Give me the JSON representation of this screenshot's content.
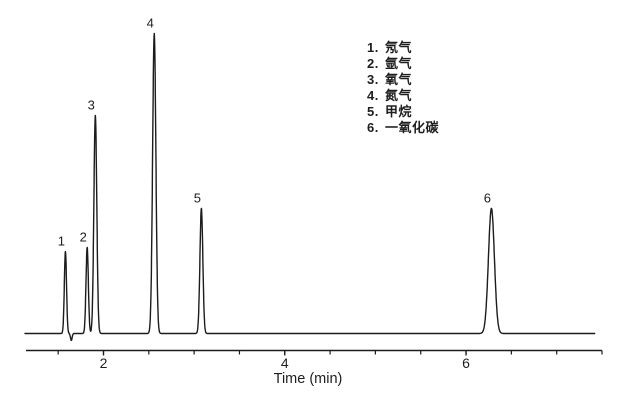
{
  "figure": {
    "background": "#ffffff",
    "trace_color": "#1c1c1c",
    "text_color": "#1e1e1e"
  },
  "chart_data": {
    "type": "line",
    "title": "",
    "xlabel": "Time (min)",
    "ylabel": "",
    "grid": false,
    "legend_position": "upper-right",
    "x_axis": {
      "unit": "min",
      "range": [
        1.145,
        7.5
      ],
      "minor_ticks": [
        1.5,
        2,
        2.5,
        3,
        3.5,
        4,
        4.5,
        5,
        5.5,
        6,
        6.5,
        7,
        7.5
      ],
      "labeled_ticks": [
        {
          "t": 2,
          "label": "2"
        },
        {
          "t": 4,
          "label": "4"
        },
        {
          "t": 6,
          "label": "6"
        }
      ]
    },
    "trace": {
      "t_start": 1.134,
      "t_end": 7.42,
      "baseline_level": 0,
      "negative_dip": {
        "time_min": 1.645,
        "depth_rel": 0.023,
        "sigma_min": 0.009
      }
    },
    "peaks": [
      {
        "label": "1",
        "compound": "氖气",
        "time_min": 1.58,
        "height_rel": 0.273,
        "sigma_min": 0.012
      },
      {
        "label": "2",
        "compound": "氩气",
        "time_min": 1.82,
        "height_rel": 0.287,
        "sigma_min": 0.013
      },
      {
        "label": "3",
        "compound": "氧气",
        "time_min": 1.91,
        "height_rel": 0.727,
        "sigma_min": 0.016
      },
      {
        "label": "4",
        "compound": "氮气",
        "time_min": 2.56,
        "height_rel": 1.0,
        "sigma_min": 0.018
      },
      {
        "label": "5",
        "compound": "甲烷",
        "time_min": 3.08,
        "height_rel": 0.417,
        "sigma_min": 0.016
      },
      {
        "label": "6",
        "compound": "一氧化碳",
        "time_min": 6.28,
        "height_rel": 0.417,
        "sigma_min": 0.033
      }
    ],
    "legend": {
      "items": [
        {
          "num": "1.",
          "name": "氖气"
        },
        {
          "num": "2.",
          "name": "氩气"
        },
        {
          "num": "3.",
          "name": "氧气"
        },
        {
          "num": "4.",
          "name": "氮气"
        },
        {
          "num": "5.",
          "name": "甲烷"
        },
        {
          "num": "6.",
          "name": "一氧化碳"
        }
      ]
    }
  }
}
